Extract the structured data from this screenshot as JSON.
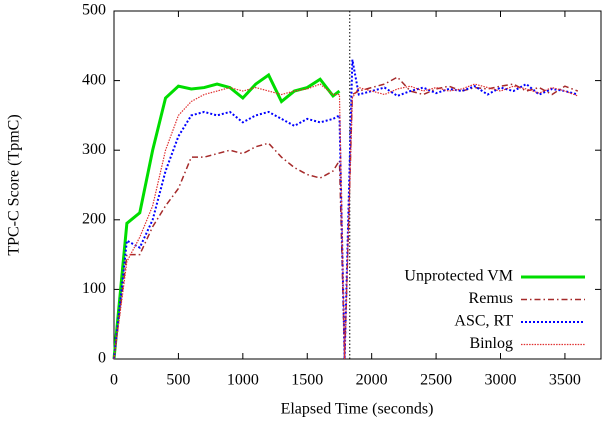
{
  "chart_data": {
    "type": "line",
    "xlabel": "Elapsed Time (seconds)",
    "ylabel": "TPC-C Score (TpmC)",
    "x": [
      0,
      100,
      200,
      300,
      400,
      500,
      600,
      700,
      800,
      900,
      1000,
      1100,
      1200,
      1300,
      1400,
      1500,
      1600,
      1700,
      1750,
      1790,
      1850,
      1900,
      2000,
      2100,
      2200,
      2300,
      2400,
      2500,
      2600,
      2700,
      2800,
      2900,
      3000,
      3100,
      3200,
      3300,
      3400,
      3500,
      3600
    ],
    "series": [
      {
        "name": "Unprotected VM",
        "color": "#00dd00",
        "style": "solid",
        "values": [
          0,
          195,
          210,
          300,
          375,
          392,
          388,
          390,
          395,
          390,
          375,
          395,
          408,
          370,
          385,
          390,
          402,
          378,
          385,
          null,
          null,
          null,
          null,
          null,
          null,
          null,
          null,
          null,
          null,
          null,
          null,
          null,
          null,
          null,
          null,
          null,
          null,
          null,
          null
        ]
      },
      {
        "name": "Remus",
        "color": "#a52a2a",
        "style": "dashdot",
        "values": [
          0,
          150,
          150,
          190,
          220,
          245,
          290,
          290,
          295,
          300,
          295,
          305,
          310,
          290,
          275,
          265,
          260,
          270,
          285,
          0,
          380,
          385,
          390,
          395,
          405,
          385,
          380,
          388,
          392,
          385,
          390,
          388,
          392,
          395,
          385,
          390,
          380,
          392,
          385
        ]
      },
      {
        "name": "ASC, RT",
        "color": "#0000ff",
        "style": "dotted",
        "values": [
          0,
          170,
          160,
          200,
          270,
          320,
          350,
          355,
          350,
          355,
          340,
          350,
          355,
          345,
          335,
          345,
          340,
          345,
          350,
          0,
          430,
          380,
          385,
          390,
          378,
          385,
          390,
          382,
          388,
          385,
          392,
          380,
          390,
          385,
          395,
          380,
          388,
          385,
          380
        ]
      },
      {
        "name": "Binlog",
        "color": "#e03030",
        "style": "finedot",
        "values": [
          0,
          140,
          175,
          220,
          300,
          350,
          370,
          380,
          385,
          390,
          385,
          390,
          385,
          380,
          385,
          388,
          395,
          380,
          380,
          0,
          375,
          390,
          385,
          380,
          388,
          392,
          385,
          390,
          385,
          388,
          395,
          390,
          385,
          392,
          388,
          382,
          390,
          385,
          378
        ]
      }
    ],
    "vline": 1830,
    "xlim": [
      0,
      3780
    ],
    "ylim": [
      0,
      500
    ],
    "xticks": [
      0,
      500,
      1000,
      1500,
      2000,
      2500,
      3000,
      3500
    ],
    "yticks": [
      0,
      100,
      200,
      300,
      400,
      500
    ],
    "legend": "lower-right"
  }
}
